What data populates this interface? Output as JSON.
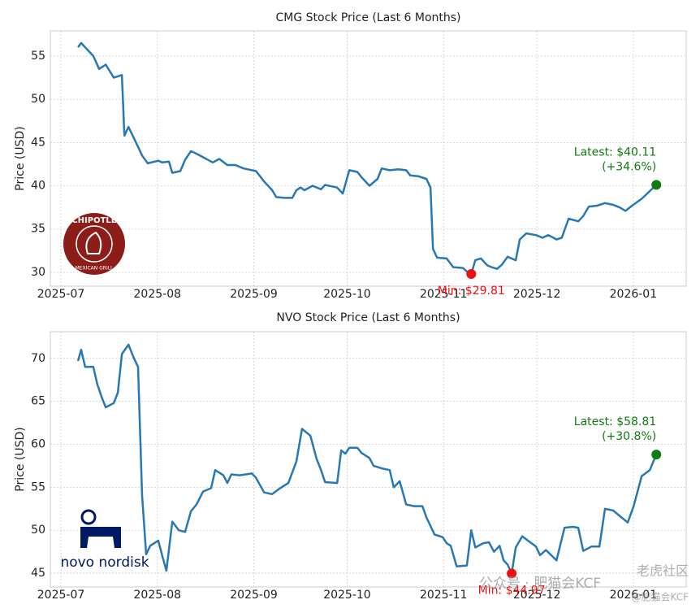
{
  "chart_data": [
    {
      "type": "line",
      "title": "CMG Stock Price (Last 6 Months)",
      "y_label": "Price (USD)",
      "xlim": [
        -3.4,
        201
      ],
      "ylim": [
        28.4,
        57.9
      ],
      "xticks": [
        {
          "value": 0,
          "label": "2025-07"
        },
        {
          "value": 31,
          "label": "2025-08"
        },
        {
          "value": 62,
          "label": "2025-09"
        },
        {
          "value": 92,
          "label": "2025-10"
        },
        {
          "value": 123,
          "label": "2025-11"
        },
        {
          "value": 153,
          "label": "2025-12"
        },
        {
          "value": 184,
          "label": "2026-01"
        }
      ],
      "yticks": [
        30,
        35,
        40,
        45,
        50,
        55
      ],
      "grid": true,
      "x": [
        5.5,
        6.5,
        10.4,
        12.3,
        14.4,
        17.0,
        19.6,
        20.4,
        21.7,
        24.8,
        26.1,
        27.9,
        31.3,
        32.6,
        34.7,
        35.8,
        38.4,
        39.9,
        41.8,
        43.1,
        45.7,
        48.8,
        50.9,
        53.5,
        56.1,
        58.7,
        62.7,
        65.3,
        67.9,
        69.2,
        71.8,
        74.4,
        75.7,
        77.0,
        78.3,
        80.9,
        83.6,
        84.9,
        88.8,
        90.6,
        92.7,
        95.3,
        96.6,
        99.2,
        101.8,
        103.1,
        105.7,
        108.4,
        111.0,
        112.3,
        114.9,
        117.5,
        118.8,
        119.6,
        120.9,
        124.0,
        126.1,
        129.2,
        130.5,
        131.9,
        133.2,
        135.0,
        137.1,
        138.4,
        140.2,
        141.8,
        143.6,
        146.2,
        147.5,
        149.6,
        152.7,
        154.8,
        156.7,
        159.3,
        161.0,
        163.2,
        166.3,
        167.9,
        169.7,
        172.3,
        174.9,
        177.5,
        179.6,
        181.5,
        183.6,
        186.7,
        191.4
      ],
      "series": [
        {
          "name": "CMG",
          "color": "#2878b5",
          "values": [
            56,
            56.5,
            55,
            53.5,
            54,
            52.5,
            52.8,
            45.8,
            46.8,
            44.5,
            43.5,
            42.6,
            42.9,
            42.7,
            42.8,
            41.5,
            41.7,
            43,
            44,
            43.8,
            43.3,
            42.7,
            43.1,
            42.4,
            42.4,
            42,
            41.7,
            40.5,
            39.5,
            38.7,
            38.6,
            38.6,
            39.5,
            39.8,
            39.5,
            40,
            39.6,
            40.1,
            39.8,
            39.1,
            41.8,
            41.6,
            41,
            40,
            40.8,
            42,
            41.8,
            41.9,
            41.8,
            41.2,
            41.1,
            40.8,
            39.8,
            32.7,
            31.7,
            31.6,
            30.6,
            30.5,
            30.1,
            29.81,
            31.4,
            31.6,
            30.8,
            30.6,
            30.4,
            30.9,
            31.8,
            31.4,
            33.8,
            34.5,
            34.3,
            34,
            34.3,
            33.8,
            34,
            36.2,
            35.9,
            36.5,
            37.6,
            37.7,
            38,
            37.8,
            37.5,
            37.1,
            37.7,
            38.5,
            40.11
          ]
        }
      ],
      "min_point": {
        "text": "Min: $29.81",
        "x": 131.9,
        "value": 29.81,
        "color": "#ee1111"
      },
      "latest_point": {
        "lines": [
          "Latest: $40.11",
          "(+34.6%)"
        ],
        "x": 191.4,
        "value": 40.11,
        "color": "#117a11"
      },
      "logo": {
        "name": "CHIPOTLE",
        "subtitle": "MEXICAN GRILL"
      }
    },
    {
      "type": "line",
      "title": "NVO Stock Price (Last 6 Months)",
      "y_label": "Price (USD)",
      "xlim": [
        -3.4,
        201
      ],
      "ylim": [
        43.4,
        73.1
      ],
      "xticks": [
        {
          "value": 0,
          "label": "2025-07"
        },
        {
          "value": 31,
          "label": "2025-08"
        },
        {
          "value": 62,
          "label": "2025-09"
        },
        {
          "value": 92,
          "label": "2025-10"
        },
        {
          "value": 123,
          "label": "2025-11"
        },
        {
          "value": 153,
          "label": "2025-12"
        },
        {
          "value": 184,
          "label": "2026-01"
        }
      ],
      "yticks": [
        45,
        50,
        55,
        60,
        65,
        70
      ],
      "grid": true,
      "x": [
        5.5,
        6.5,
        7.8,
        10.4,
        11.7,
        13.1,
        14.4,
        17.0,
        18.3,
        19.6,
        21.7,
        23.5,
        24.8,
        26.1,
        27.4,
        28.7,
        31.3,
        32.6,
        33.9,
        35.8,
        37.9,
        39.9,
        41.8,
        43.6,
        45.7,
        48.3,
        49.6,
        52.2,
        53.5,
        54.8,
        57.4,
        61.4,
        62.7,
        65.3,
        67.9,
        70.5,
        73.1,
        75.7,
        77.5,
        80.2,
        82.2,
        83.6,
        84.9,
        88.8,
        90.1,
        91.4,
        92.7,
        95.3,
        96.6,
        99.2,
        100.5,
        103.1,
        105.7,
        107.0,
        108.9,
        111.0,
        113.6,
        116.2,
        117.5,
        120.1,
        122.7,
        124.0,
        125.3,
        127.2,
        130.5,
        131.9,
        133.2,
        135.8,
        137.6,
        139.2,
        141.0,
        142.3,
        143.6,
        144.9,
        146.2,
        148.3,
        150.1,
        152.7,
        154.0,
        155.9,
        159.3,
        161.9,
        164.5,
        166.3,
        167.9,
        170.5,
        173.1,
        174.9,
        177.5,
        180.2,
        182.2,
        184.1,
        186.7,
        189.3,
        191.4
      ],
      "series": [
        {
          "name": "NVO",
          "color": "#2878b5",
          "values": [
            69.7,
            71,
            69,
            69,
            67,
            65.5,
            64.3,
            64.8,
            66,
            70.5,
            71.6,
            70,
            69,
            54,
            47.2,
            48.2,
            48.8,
            47,
            45.3,
            51,
            50,
            49.8,
            52.2,
            53,
            54.5,
            54.9,
            57,
            56.4,
            55.5,
            56.5,
            56.4,
            56.6,
            56.1,
            54.4,
            54.2,
            54.9,
            55.5,
            58,
            61.8,
            61,
            58.3,
            57,
            55.6,
            55.5,
            59.3,
            58.9,
            59.6,
            59.6,
            59,
            58.4,
            57.5,
            57.2,
            57,
            55,
            55.7,
            53,
            52.8,
            52.8,
            51.5,
            49.5,
            49.2,
            48.5,
            48.2,
            45.8,
            45.9,
            50,
            48,
            48.5,
            48.6,
            47.5,
            48.2,
            46.5,
            46,
            44.97,
            48,
            49.3,
            48.8,
            48.1,
            47.1,
            47.7,
            46.5,
            50.3,
            50.4,
            50.3,
            47.6,
            48.1,
            48.1,
            52.5,
            52.3,
            51.5,
            50.9,
            52.8,
            56.3,
            57,
            58.81
          ]
        }
      ],
      "min_point": {
        "text": "Min: $44.97",
        "x": 144.9,
        "value": 44.97,
        "color": "#ee1111"
      },
      "latest_point": {
        "lines": [
          "Latest: $58.81",
          "(+30.8%)"
        ],
        "x": 191.4,
        "value": 58.81,
        "color": "#117a11"
      },
      "logo": {
        "name": "novo nordisk"
      }
    }
  ],
  "watermarks": [
    "公众号 · 肥猫会KCF",
    "老虎社区",
    "@肥猫会KCF"
  ]
}
